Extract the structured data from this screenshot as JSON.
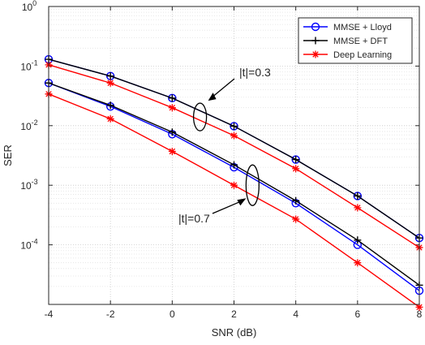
{
  "chart_data": {
    "type": "line",
    "xlabel": "SNR (dB)",
    "ylabel": "SER",
    "xlim": [
      -4,
      8
    ],
    "ylim": [
      1e-05,
      1
    ],
    "yscale": "log",
    "grid": "on (major + minor)",
    "legend_position": "top-right",
    "x": [
      -4,
      -2,
      0,
      2,
      4,
      6,
      8
    ],
    "x_tick_labels": [
      "-4",
      "-2",
      "0",
      "2",
      "4",
      "6",
      "8"
    ],
    "y_tick_labels": [
      {
        "base": "10",
        "exp": "0"
      },
      {
        "base": "10",
        "exp": "-1"
      },
      {
        "base": "10",
        "exp": "-2"
      },
      {
        "base": "10",
        "exp": "-3"
      },
      {
        "base": "10",
        "exp": "-4"
      }
    ],
    "series": [
      {
        "name": "MMSE + Lloyd",
        "color": "#0000ff",
        "marker": "circle",
        "group": "|t|=0.3",
        "values": [
          0.13,
          0.068,
          0.029,
          0.0098,
          0.0027,
          0.00066,
          0.00013
        ]
      },
      {
        "name": "MMSE + DFT",
        "color": "#000000",
        "marker": "plus",
        "group": "|t|=0.3",
        "values": [
          0.13,
          0.068,
          0.029,
          0.0098,
          0.0027,
          0.00066,
          0.00013
        ]
      },
      {
        "name": "Deep Learning",
        "color": "#ff0000",
        "marker": "asterisk",
        "group": "|t|=0.3",
        "values": [
          0.105,
          0.052,
          0.02,
          0.0068,
          0.0019,
          0.00042,
          9e-05
        ]
      },
      {
        "name": "MMSE + Lloyd",
        "color": "#0000ff",
        "marker": "circle",
        "group": "|t|=0.7",
        "values": [
          0.052,
          0.021,
          0.0072,
          0.002,
          0.0005,
          0.0001,
          1.7e-05
        ]
      },
      {
        "name": "MMSE + DFT",
        "color": "#000000",
        "marker": "plus",
        "group": "|t|=0.7",
        "values": [
          0.052,
          0.022,
          0.0078,
          0.0022,
          0.00055,
          0.00012,
          2.1e-05
        ]
      },
      {
        "name": "Deep Learning",
        "color": "#ff0000",
        "marker": "asterisk",
        "group": "|t|=0.7",
        "values": [
          0.034,
          0.013,
          0.0037,
          0.001,
          0.00027,
          5e-05,
          9e-06
        ]
      }
    ],
    "legend": [
      {
        "label": "MMSE + Lloyd",
        "color": "#0000ff",
        "marker": "circle"
      },
      {
        "label": "MMSE + DFT",
        "color": "#000000",
        "marker": "plus"
      },
      {
        "label": "Deep Learning",
        "color": "#ff0000",
        "marker": "asterisk"
      }
    ],
    "annotations": [
      {
        "text": "|t|=0.3",
        "ellipse_at": {
          "x": 0.9,
          "y": 0.014
        }
      },
      {
        "text": "|t|=0.7",
        "ellipse_at": {
          "x": 2.6,
          "y": 0.001
        }
      }
    ]
  }
}
